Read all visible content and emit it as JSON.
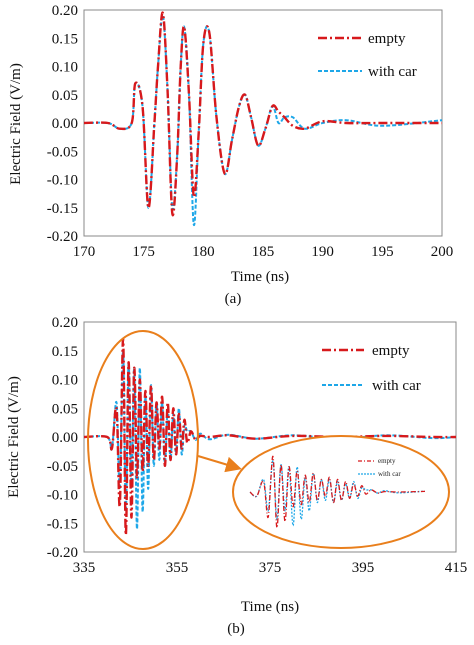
{
  "colors": {
    "empty": "#d7191c",
    "with_car": "#1ea7e8",
    "zoom": "#e97f1c"
  },
  "chart_data": [
    {
      "type": "line",
      "panel_label": "(a)",
      "xlabel": "Time (ns)",
      "ylabel": "Electric Field  (V/m)",
      "xlim": [
        170,
        200
      ],
      "ylim": [
        -0.2,
        0.2
      ],
      "x_ticks": [
        "170",
        "175",
        "180",
        "185",
        "190",
        "195",
        "200"
      ],
      "y_ticks": [
        "-0.20",
        "-0.15",
        "-0.10",
        "-0.05",
        "0.00",
        "0.05",
        "0.10",
        "0.15",
        "0.20"
      ],
      "legend_position": "top-right",
      "grid": false,
      "series": [
        {
          "name": "empty",
          "style": "dash-dot",
          "x": [
            170,
            172,
            173,
            174,
            174.3,
            174.9,
            175.4,
            175.9,
            176.2,
            176.6,
            177,
            177.4,
            177.8,
            178.1,
            178.4,
            178.8,
            179.2,
            179.6,
            180,
            180.5,
            181.1,
            181.8,
            182.4,
            183,
            183.5,
            184,
            184.6,
            185.2,
            185.8,
            186.3,
            186.8,
            187.5,
            188.5,
            190,
            192,
            195,
            200
          ],
          "y": [
            0,
            0,
            -0.01,
            0,
            0.07,
            0.03,
            -0.15,
            0,
            0.1,
            0.195,
            0.06,
            -0.16,
            -0.06,
            0.1,
            0.17,
            0.05,
            -0.13,
            -0.02,
            0.14,
            0.16,
            0.01,
            -0.09,
            -0.03,
            0.03,
            0.05,
            0.01,
            -0.04,
            -0.01,
            0.03,
            0.02,
            0.01,
            -0.005,
            -0.01,
            0.003,
            0,
            0,
            0
          ]
        },
        {
          "name": "with car",
          "style": "dashed",
          "x": [
            170,
            172,
            173,
            174,
            174.3,
            174.9,
            175.4,
            175.9,
            176.2,
            176.6,
            177,
            177.4,
            177.8,
            178.1,
            178.4,
            178.8,
            179.2,
            179.6,
            180,
            180.5,
            181.1,
            181.8,
            182.4,
            183,
            183.5,
            184,
            184.6,
            185.2,
            185.8,
            186.3,
            186.8,
            187.5,
            188.5,
            190,
            192,
            195,
            200
          ],
          "y": [
            0,
            0,
            -0.01,
            0,
            0.07,
            0.03,
            -0.15,
            0,
            0.1,
            0.19,
            0.06,
            -0.15,
            -0.06,
            0.1,
            0.17,
            0.05,
            -0.18,
            -0.02,
            0.14,
            0.16,
            0.01,
            -0.09,
            -0.03,
            0.03,
            0.05,
            0.01,
            -0.04,
            -0.01,
            0.03,
            0,
            0.01,
            0.01,
            -0.01,
            0,
            0.005,
            -0.005,
            0.005
          ]
        }
      ]
    },
    {
      "type": "line",
      "panel_label": "(b)",
      "xlabel": "Time (ns)",
      "ylabel": "Electric Field  (V/m)",
      "xlim": [
        335,
        415
      ],
      "ylim": [
        -0.2,
        0.2
      ],
      "x_ticks": [
        "335",
        "355",
        "375",
        "395",
        "415"
      ],
      "y_ticks": [
        "-0.20",
        "-0.15",
        "-0.10",
        "-0.05",
        "0.00",
        "0.05",
        "0.10",
        "0.15",
        "0.20"
      ],
      "legend_position": "top-right",
      "grid": false,
      "series": [
        {
          "name": "empty",
          "style": "dash-dot",
          "x": [
            335,
            340,
            341,
            342,
            342.7,
            343.4,
            344,
            344.6,
            345.2,
            345.8,
            346.4,
            347,
            347.6,
            348.2,
            348.8,
            349.4,
            350,
            350.6,
            351.2,
            351.8,
            352.4,
            353,
            353.6,
            354.2,
            354.8,
            355.4,
            356,
            356.6,
            357.2,
            358,
            359,
            360,
            362,
            366,
            372,
            380,
            390,
            400,
            410,
            415
          ],
          "y": [
            0,
            0,
            -0.02,
            0.05,
            -0.12,
            0.17,
            -0.17,
            0.13,
            -0.14,
            0.12,
            -0.07,
            0.1,
            -0.06,
            0.08,
            -0.05,
            0.09,
            -0.04,
            0.06,
            -0.02,
            0.07,
            -0.05,
            0.06,
            -0.04,
            0.05,
            -0.03,
            0.04,
            -0.02,
            0.03,
            -0.01,
            0.01,
            -0.005,
            0.002,
            0,
            0.003,
            -0.003,
            0.002,
            0,
            0.002,
            0,
            0
          ]
        },
        {
          "name": "with car",
          "style": "dashed",
          "x": [
            335,
            340,
            341,
            342,
            342.7,
            343.4,
            344,
            344.6,
            345.2,
            345.8,
            346.4,
            347,
            347.6,
            348.2,
            348.8,
            349.4,
            350,
            350.6,
            351.2,
            351.8,
            352.4,
            353,
            353.6,
            354.2,
            354.8,
            355.4,
            356,
            356.6,
            357.2,
            358,
            359,
            360,
            362,
            366,
            372,
            380,
            390,
            400,
            410,
            415
          ],
          "y": [
            0,
            0,
            -0.02,
            0.06,
            -0.09,
            0.15,
            -0.13,
            0.13,
            -0.09,
            0.12,
            -0.16,
            0.12,
            -0.13,
            0.07,
            -0.09,
            0.09,
            -0.05,
            0.06,
            -0.04,
            0.06,
            -0.05,
            0.05,
            -0.04,
            0.04,
            -0.03,
            0.05,
            -0.03,
            0.02,
            0.01,
            0.01,
            -0.005,
            0.006,
            -0.004,
            0.004,
            -0.003,
            0.003,
            -0.003,
            0.003,
            -0.002,
            0
          ]
        }
      ],
      "inset": {
        "legend": [
          "empty",
          "with car"
        ]
      }
    }
  ]
}
